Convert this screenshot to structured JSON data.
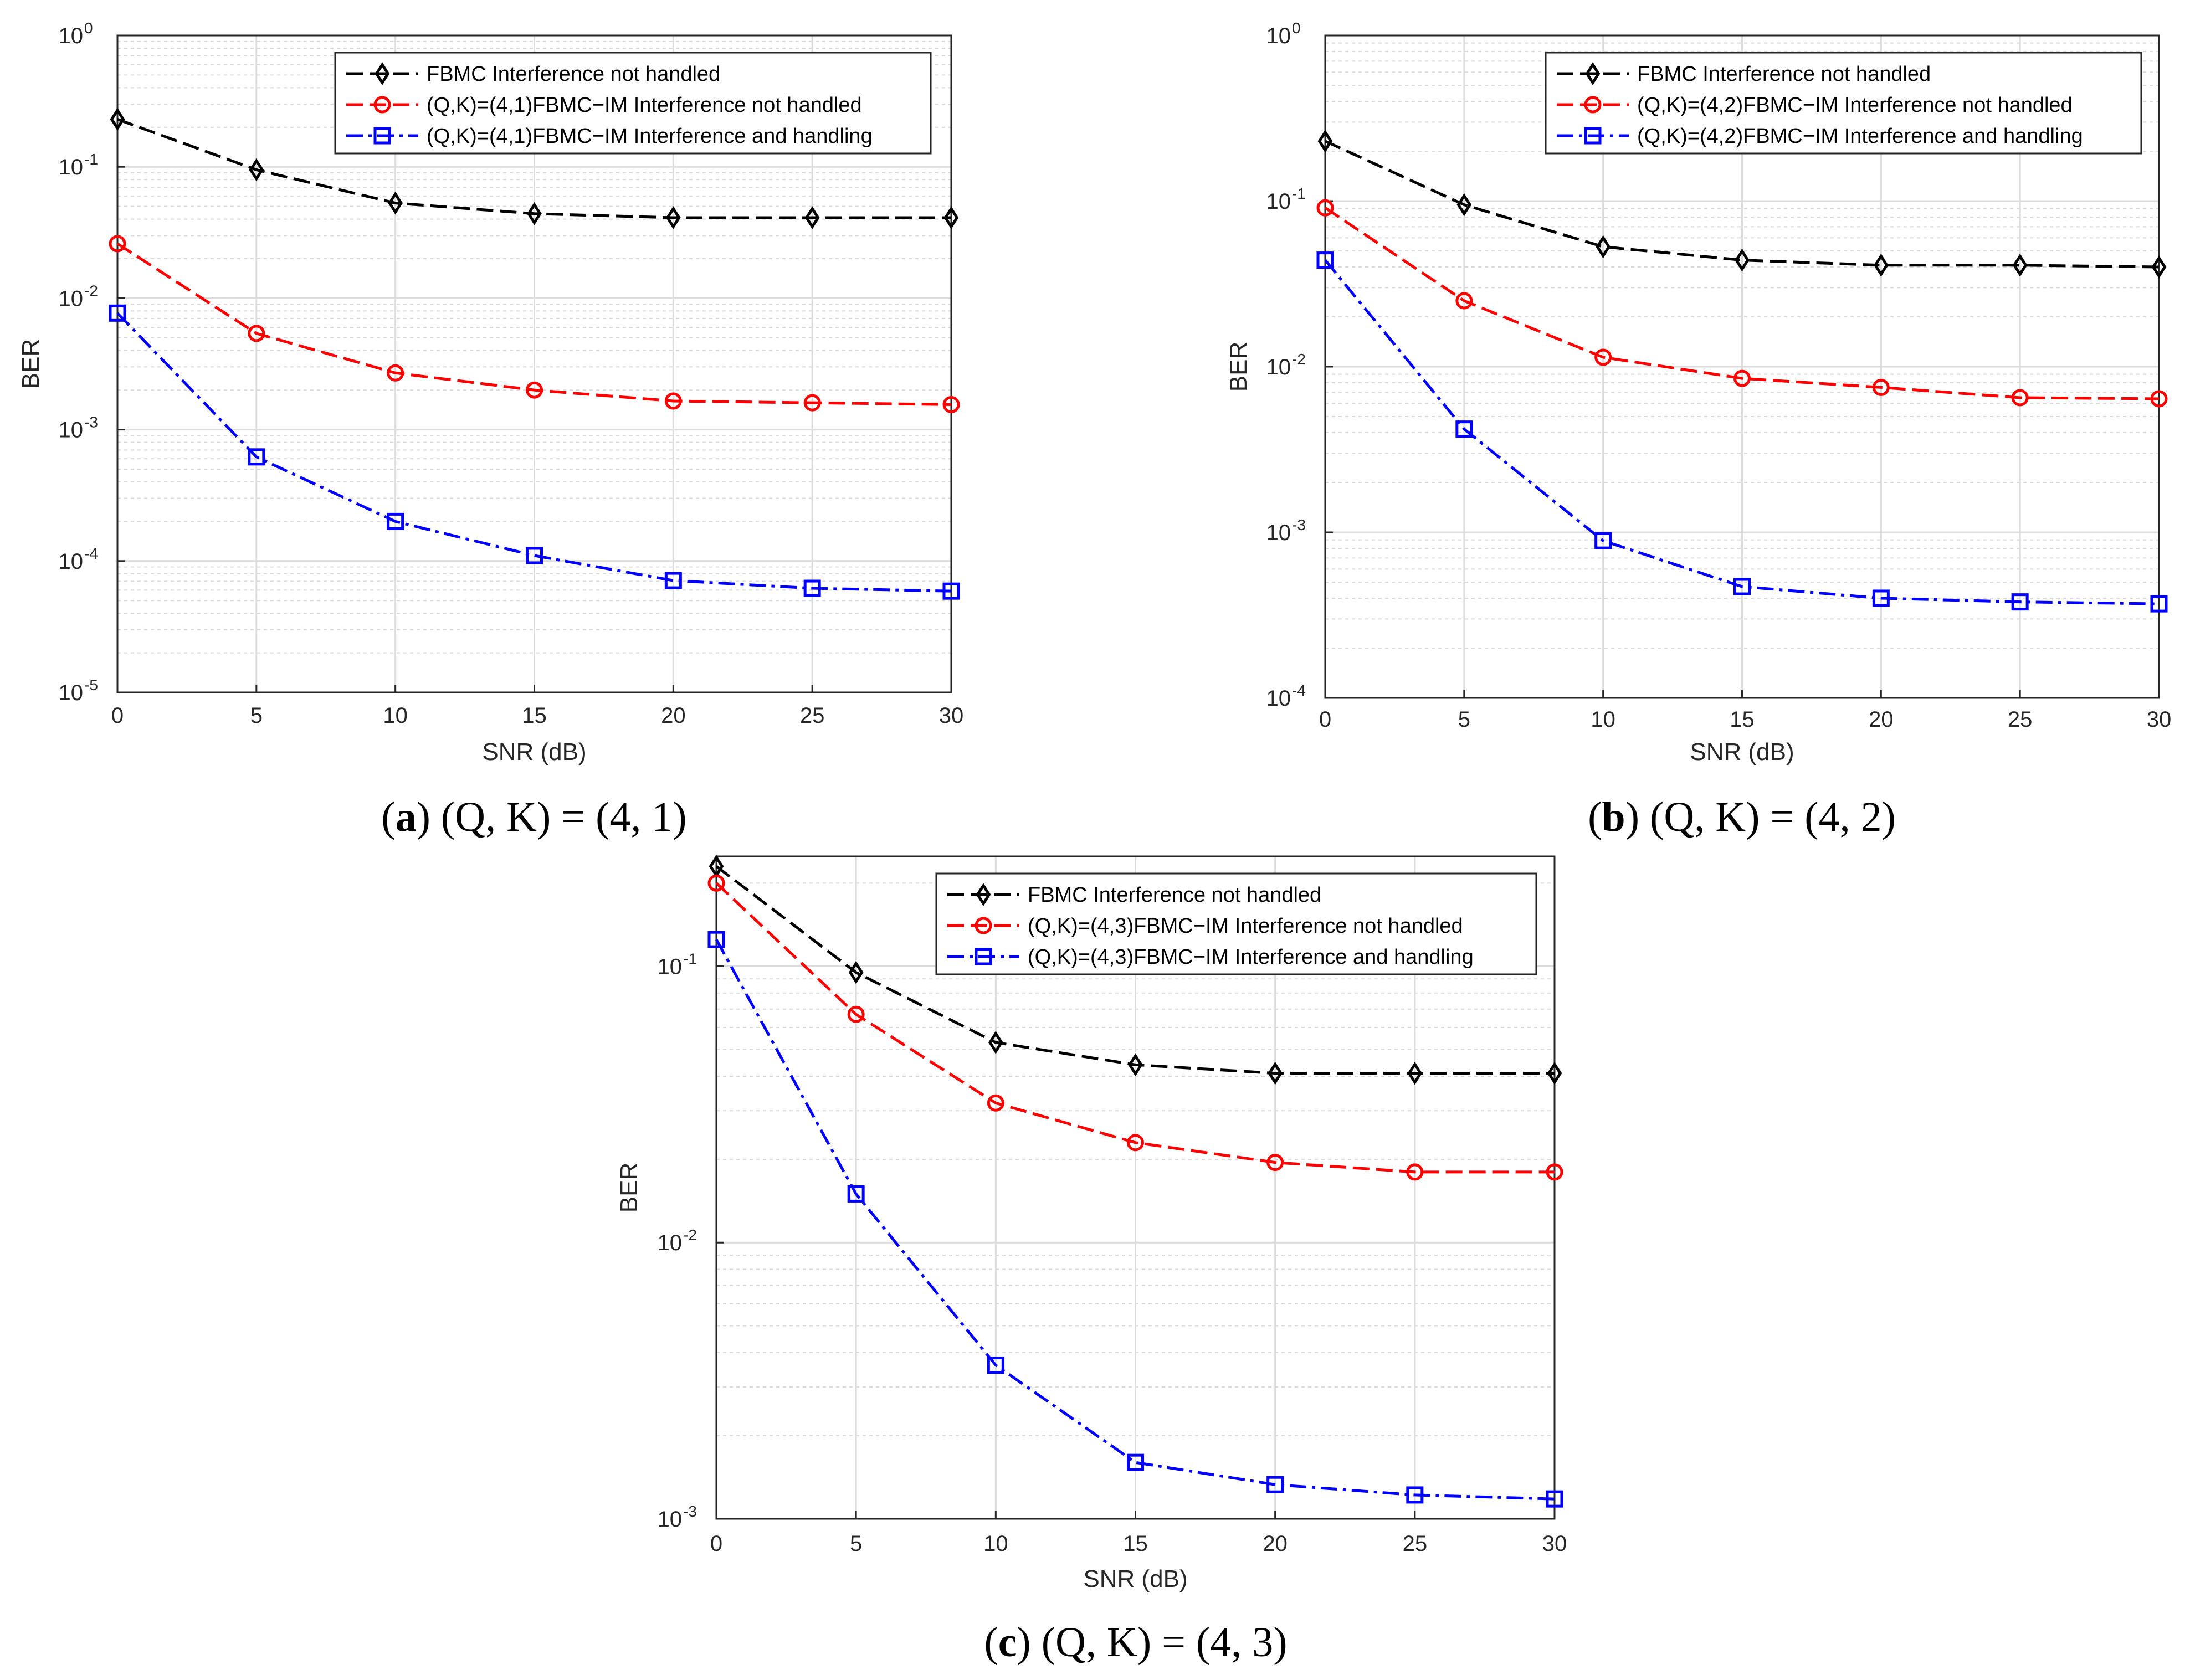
{
  "chart_data": [
    {
      "type": "line",
      "panel": "a",
      "caption": {
        "letter": "a",
        "text": "(Q, K) = (4, 1)"
      },
      "xlabel": "SNR (dB)",
      "ylabel": "BER",
      "yscale": "log",
      "xlim": [
        0,
        30
      ],
      "ylim": [
        1e-05,
        1
      ],
      "xticks": [
        0,
        5,
        10,
        15,
        20,
        25,
        30
      ],
      "yticks": [
        -5,
        -4,
        -3,
        -2,
        -1,
        0
      ],
      "grid": true,
      "legend_position": "top-right",
      "x": [
        0,
        5,
        10,
        15,
        20,
        25,
        30
      ],
      "series": [
        {
          "name": "FBMC Interference not handled",
          "color": "#000000",
          "marker": "diamond",
          "values": [
            0.23,
            0.095,
            0.053,
            0.044,
            0.041,
            0.041,
            0.041
          ]
        },
        {
          "name": "(Q,K)=(4,1)FBMC−IM Interference not handled",
          "color": "#ff0000",
          "marker": "circle",
          "values": [
            0.026,
            0.0054,
            0.0027,
            0.002,
            0.00165,
            0.0016,
            0.00155
          ]
        },
        {
          "name": "(Q,K)=(4,1)FBMC−IM Interference and handling",
          "color": "#0000ff",
          "marker": "square",
          "values": [
            0.0077,
            0.00062,
            0.0002,
            0.00011,
            7.1e-05,
            6.2e-05,
            5.9e-05
          ]
        }
      ]
    },
    {
      "type": "line",
      "panel": "b",
      "caption": {
        "letter": "b",
        "text": "(Q, K) = (4, 2)"
      },
      "xlabel": "SNR (dB)",
      "ylabel": "BER",
      "yscale": "log",
      "xlim": [
        0,
        30
      ],
      "ylim": [
        0.0001,
        1
      ],
      "xticks": [
        0,
        5,
        10,
        15,
        20,
        25,
        30
      ],
      "yticks": [
        -4,
        -3,
        -2,
        -1,
        0
      ],
      "grid": true,
      "legend_position": "top-right",
      "x": [
        0,
        5,
        10,
        15,
        20,
        25,
        30
      ],
      "series": [
        {
          "name": "FBMC Interference not handled",
          "color": "#000000",
          "marker": "diamond",
          "values": [
            0.23,
            0.095,
            0.053,
            0.044,
            0.041,
            0.041,
            0.04
          ]
        },
        {
          "name": "(Q,K)=(4,2)FBMC−IM Interference not handled",
          "color": "#ff0000",
          "marker": "circle",
          "values": [
            0.091,
            0.025,
            0.0114,
            0.0085,
            0.0075,
            0.0065,
            0.0064
          ]
        },
        {
          "name": "(Q,K)=(4,2)FBMC−IM Interference and handling",
          "color": "#0000ff",
          "marker": "square",
          "values": [
            0.044,
            0.0042,
            0.00089,
            0.00047,
            0.0004,
            0.00038,
            0.00037
          ]
        }
      ]
    },
    {
      "type": "line",
      "panel": "c",
      "caption": {
        "letter": "c",
        "text": "(Q, K) = (4, 3)"
      },
      "xlabel": "SNR (dB)",
      "ylabel": "BER",
      "yscale": "log",
      "xlim": [
        0,
        30
      ],
      "ylim": [
        0.001,
        0.25
      ],
      "xticks": [
        0,
        5,
        10,
        15,
        20,
        25,
        30
      ],
      "yticks": [
        -3,
        -2,
        -1
      ],
      "grid": true,
      "legend_position": "top-right",
      "x": [
        0,
        5,
        10,
        15,
        20,
        25,
        30
      ],
      "series": [
        {
          "name": "FBMC Interference not handled",
          "color": "#000000",
          "marker": "diamond",
          "values": [
            0.23,
            0.095,
            0.053,
            0.044,
            0.041,
            0.041,
            0.041
          ]
        },
        {
          "name": "(Q,K)=(4,3)FBMC−IM Interference not handled",
          "color": "#ff0000",
          "marker": "circle",
          "values": [
            0.2,
            0.067,
            0.032,
            0.023,
            0.0195,
            0.018,
            0.018
          ]
        },
        {
          "name": "(Q,K)=(4,3)FBMC−IM Interference and handling",
          "color": "#0000ff",
          "marker": "square",
          "values": [
            0.125,
            0.015,
            0.0036,
            0.0016,
            0.00133,
            0.00122,
            0.00118
          ]
        }
      ]
    }
  ]
}
